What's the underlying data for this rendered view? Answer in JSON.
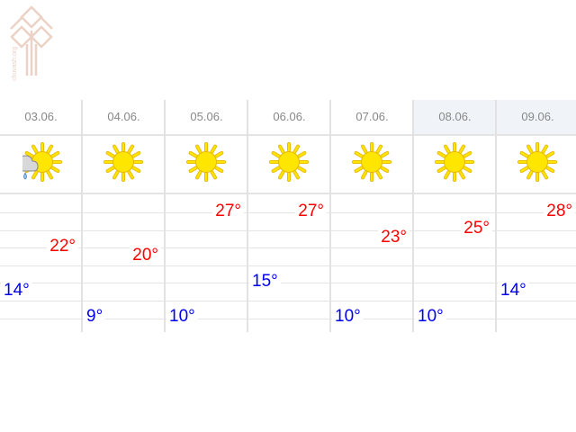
{
  "logo": {
    "text": "chuvash.org"
  },
  "colors": {
    "high": "#ff0000",
    "low": "#0000ee",
    "weekend_header": "#f0f4f8"
  },
  "days": [
    {
      "date": "03.06.",
      "icon": "cloud-rain-sun-icon",
      "high": "22°",
      "low": "14°"
    },
    {
      "date": "04.06.",
      "icon": "sun-icon",
      "high": "20°",
      "low": "9°"
    },
    {
      "date": "05.06.",
      "icon": "sun-icon",
      "high": "27°",
      "low": "10°"
    },
    {
      "date": "06.06.",
      "icon": "sun-icon",
      "high": "27°",
      "low": "15°"
    },
    {
      "date": "07.06.",
      "icon": "sun-icon",
      "high": "23°",
      "low": "10°"
    },
    {
      "date": "08.06.",
      "icon": "sun-icon",
      "high": "25°",
      "low": "10°",
      "weekend": true
    },
    {
      "date": "09.06.",
      "icon": "sun-icon",
      "high": "28°",
      "low": "14°",
      "weekend": true
    }
  ]
}
